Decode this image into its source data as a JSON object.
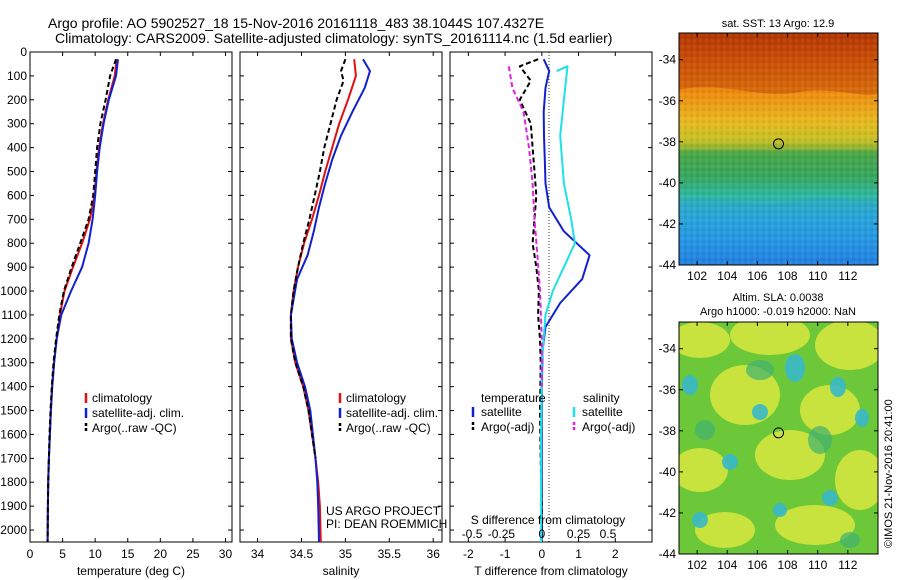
{
  "header": {
    "line1": "Argo profile: AO 5902527_18 15-Nov-2016 20161118_483 38.1044S 107.4327E",
    "line2": "Climatology: CARS2009. Satellite-adjusted climatology: synTS_20161114.nc (1.5d earlier)"
  },
  "credit": {
    "line1": "US ARGO PROJECT",
    "line2": "PI: DEAN ROEMMICH"
  },
  "watermark": "©IMOS 21-Nov-2016 20:41:00",
  "colors": {
    "climatology": "#e01010",
    "satellite": "#1020d0",
    "argo": "#000000",
    "sat_salinity": "#20e0e8",
    "argo_salinity": "#e020e0"
  },
  "chart_data": [
    {
      "type": "line",
      "name": "temperature-profile",
      "xlabel": "temperature (deg C)",
      "ylabel": "",
      "xlim": [
        0,
        31
      ],
      "ylim": [
        2050,
        0
      ],
      "xticks": [
        0,
        5,
        10,
        15,
        20,
        25,
        30
      ],
      "yticks": [
        0,
        100,
        200,
        300,
        400,
        500,
        600,
        700,
        800,
        900,
        1000,
        1100,
        1200,
        1300,
        1400,
        1500,
        1600,
        1700,
        1800,
        1900,
        2000
      ],
      "legend": [
        "climatology",
        "satellite-adj. clim.",
        "Argo(..raw -QC)"
      ],
      "series": [
        {
          "name": "climatology",
          "color": "#e01010",
          "dash": "",
          "points": [
            [
              13.3,
              30
            ],
            [
              13,
              100
            ],
            [
              12,
              200
            ],
            [
              11.2,
              300
            ],
            [
              10.6,
              400
            ],
            [
              10.2,
              500
            ],
            [
              9.9,
              600
            ],
            [
              9.2,
              700
            ],
            [
              8,
              800
            ],
            [
              6.6,
              900
            ],
            [
              5.3,
              1000
            ],
            [
              4.6,
              1100
            ],
            [
              4.1,
              1200
            ],
            [
              3.7,
              1300
            ],
            [
              3.4,
              1400
            ],
            [
              3.2,
              1500
            ],
            [
              3.05,
              1600
            ],
            [
              2.9,
              1700
            ],
            [
              2.8,
              1800
            ],
            [
              2.75,
              1900
            ],
            [
              2.7,
              2050
            ]
          ]
        },
        {
          "name": "satellite-adj. clim.",
          "color": "#1020d0",
          "dash": "",
          "points": [
            [
              13.5,
              30
            ],
            [
              13.2,
              100
            ],
            [
              12.1,
              200
            ],
            [
              11.3,
              300
            ],
            [
              10.7,
              400
            ],
            [
              10.3,
              500
            ],
            [
              10,
              600
            ],
            [
              9.6,
              700
            ],
            [
              9,
              800
            ],
            [
              8,
              900
            ],
            [
              6.3,
              1000
            ],
            [
              4.8,
              1100
            ],
            [
              4.1,
              1200
            ],
            [
              3.7,
              1300
            ],
            [
              3.4,
              1400
            ],
            [
              3.2,
              1500
            ],
            [
              3.05,
              1600
            ],
            [
              2.9,
              1700
            ],
            [
              2.8,
              1800
            ],
            [
              2.75,
              1900
            ],
            [
              2.7,
              2050
            ]
          ]
        },
        {
          "name": "Argo(..raw -QC)",
          "color": "#000000",
          "dash": "5,3",
          "points": [
            [
              13.2,
              30
            ],
            [
              12.3,
              100
            ],
            [
              11.6,
              200
            ],
            [
              10.8,
              300
            ],
            [
              10.3,
              400
            ],
            [
              10,
              500
            ],
            [
              9.7,
              600
            ],
            [
              9,
              700
            ],
            [
              7.7,
              800
            ],
            [
              6.4,
              900
            ],
            [
              5.2,
              1000
            ],
            [
              4.5,
              1100
            ],
            [
              4,
              1200
            ],
            [
              3.6,
              1300
            ],
            [
              3.35,
              1400
            ],
            [
              3.15,
              1500
            ],
            [
              3,
              1600
            ],
            [
              2.9,
              1700
            ],
            [
              2.8,
              1800
            ],
            [
              2.75,
              1900
            ],
            [
              2.7,
              2050
            ]
          ]
        }
      ]
    },
    {
      "type": "line",
      "name": "salinity-profile",
      "xlabel": "salinity",
      "ylabel": "",
      "xlim": [
        33.8,
        36.1
      ],
      "ylim": [
        2050,
        0
      ],
      "xticks": [
        34,
        34.5,
        35,
        35.5,
        36
      ],
      "legend": [
        "climatology",
        "satellite-adj. clim.",
        "Argo(..raw -QC)"
      ],
      "series": [
        {
          "name": "climatology",
          "color": "#e01010",
          "dash": "",
          "points": [
            [
              35.1,
              30
            ],
            [
              35.12,
              100
            ],
            [
              35.03,
              200
            ],
            [
              34.93,
              300
            ],
            [
              34.85,
              400
            ],
            [
              34.77,
              500
            ],
            [
              34.7,
              600
            ],
            [
              34.62,
              700
            ],
            [
              34.53,
              800
            ],
            [
              34.46,
              900
            ],
            [
              34.41,
              1000
            ],
            [
              34.38,
              1100
            ],
            [
              34.38,
              1200
            ],
            [
              34.43,
              1300
            ],
            [
              34.52,
              1400
            ],
            [
              34.58,
              1500
            ],
            [
              34.62,
              1600
            ],
            [
              34.66,
              1700
            ],
            [
              34.69,
              1800
            ],
            [
              34.71,
              1900
            ],
            [
              34.72,
              2050
            ]
          ]
        },
        {
          "name": "satellite-adj. clim.",
          "color": "#1020d0",
          "dash": "",
          "points": [
            [
              35.2,
              30
            ],
            [
              35.28,
              80
            ],
            [
              35.22,
              150
            ],
            [
              35.08,
              250
            ],
            [
              34.95,
              350
            ],
            [
              34.85,
              450
            ],
            [
              34.77,
              550
            ],
            [
              34.7,
              650
            ],
            [
              34.64,
              750
            ],
            [
              34.57,
              850
            ],
            [
              34.45,
              950
            ],
            [
              34.38,
              1100
            ],
            [
              34.39,
              1200
            ],
            [
              34.45,
              1300
            ],
            [
              34.54,
              1400
            ],
            [
              34.6,
              1500
            ],
            [
              34.63,
              1600
            ],
            [
              34.66,
              1700
            ],
            [
              34.68,
              1800
            ],
            [
              34.69,
              1900
            ],
            [
              34.7,
              2050
            ]
          ]
        },
        {
          "name": "Argo(..raw -QC)",
          "color": "#000000",
          "dash": "5,3",
          "points": [
            [
              35,
              30
            ],
            [
              34.95,
              80
            ],
            [
              34.98,
              120
            ],
            [
              34.9,
              200
            ],
            [
              34.83,
              300
            ],
            [
              34.76,
              400
            ],
            [
              34.71,
              500
            ],
            [
              34.65,
              600
            ],
            [
              34.59,
              700
            ],
            [
              34.52,
              800
            ],
            [
              34.46,
              900
            ],
            [
              34.41,
              1000
            ],
            [
              34.38,
              1100
            ],
            [
              34.38,
              1200
            ],
            [
              34.43,
              1300
            ],
            [
              34.52,
              1400
            ],
            [
              34.58,
              1500
            ],
            [
              34.62,
              1600
            ],
            [
              34.66,
              1700
            ]
          ]
        }
      ]
    },
    {
      "type": "line",
      "name": "difference-profile",
      "xlabel": "T difference from climatology",
      "ylabel": "",
      "x2label": "S difference from climatology",
      "xlim": [
        -2.5,
        3
      ],
      "ylim": [
        2050,
        0
      ],
      "xticks": [
        -2,
        -1,
        0,
        1,
        2
      ],
      "x2ticks": [
        "-0.5",
        "-0.25",
        "0",
        "0.25",
        "0.5"
      ],
      "x2tick_positions_T": [
        -1.9,
        -1.1,
        0,
        1.0,
        1.8
      ],
      "legend_groups": [
        "temperature",
        "salinity"
      ],
      "legend": [
        "satellite",
        "Argo(-adj)",
        "satellite",
        "Argo(-adj)"
      ],
      "series": [
        {
          "name": "satellite",
          "group": "temperature",
          "color": "#1020d0",
          "dash": "",
          "points": [
            [
              0.05,
              30
            ],
            [
              0.2,
              80
            ],
            [
              0.1,
              150
            ],
            [
              0.05,
              250
            ],
            [
              0.06,
              350
            ],
            [
              0.08,
              450
            ],
            [
              0.1,
              550
            ],
            [
              0.2,
              650
            ],
            [
              0.6,
              750
            ],
            [
              1.3,
              850
            ],
            [
              1.1,
              950
            ],
            [
              0.5,
              1050
            ],
            [
              0.1,
              1150
            ],
            [
              0.02,
              1250
            ],
            [
              0,
              1400
            ],
            [
              0,
              1600
            ],
            [
              0,
              2050
            ]
          ]
        },
        {
          "name": "Argo(-adj)",
          "group": "temperature",
          "color": "#000000",
          "dash": "5,3",
          "points": [
            [
              -0.1,
              30
            ],
            [
              -0.6,
              60
            ],
            [
              -0.3,
              120
            ],
            [
              -0.6,
              200
            ],
            [
              -0.3,
              300
            ],
            [
              -0.25,
              400
            ],
            [
              -0.2,
              500
            ],
            [
              -0.15,
              600
            ],
            [
              -0.2,
              700
            ],
            [
              -0.25,
              800
            ],
            [
              -0.15,
              900
            ],
            [
              -0.08,
              1000
            ],
            [
              -0.1,
              1100
            ],
            [
              -0.05,
              1200
            ],
            [
              -0.03,
              1300
            ],
            [
              -0.05,
              1500
            ],
            [
              -0.03,
              1700
            ],
            [
              0,
              1900
            ],
            [
              0,
              2050
            ]
          ]
        },
        {
          "name": "satellite",
          "group": "salinity",
          "color": "#20e0e8",
          "dash": "",
          "points": [
            [
              0.4,
              80
            ],
            [
              0.7,
              60
            ],
            [
              0.6,
              200
            ],
            [
              0.5,
              350
            ],
            [
              0.6,
              550
            ],
            [
              0.8,
              700
            ],
            [
              0.9,
              800
            ],
            [
              0.6,
              900
            ],
            [
              0.3,
              1000
            ],
            [
              0.1,
              1100
            ],
            [
              0,
              1300
            ],
            [
              -0.02,
              1600
            ],
            [
              -0.02,
              2050
            ]
          ]
        },
        {
          "name": "Argo(-adj)",
          "group": "salinity",
          "color": "#e020e0",
          "dash": "5,3",
          "points": [
            [
              -0.9,
              60
            ],
            [
              -0.8,
              150
            ],
            [
              -0.5,
              250
            ],
            [
              -0.35,
              400
            ],
            [
              -0.25,
              550
            ],
            [
              -0.2,
              700
            ],
            [
              -0.12,
              850
            ],
            [
              -0.05,
              1000
            ],
            [
              0,
              1200
            ],
            [
              0,
              1400
            ]
          ]
        }
      ]
    },
    {
      "type": "heatmap",
      "name": "sst-map",
      "title": "sat. SST: 13 Argo: 12.9",
      "xlim": [
        100.8,
        114
      ],
      "ylim": [
        -44,
        -32.7
      ],
      "xticks": [
        102,
        104,
        106,
        108,
        110,
        112
      ],
      "yticks": [
        -34,
        -36,
        -38,
        -40,
        -42,
        -44
      ],
      "marker": {
        "lon": 107.4,
        "lat": -38.1
      }
    },
    {
      "type": "heatmap",
      "name": "sla-map",
      "title": "Altim. SLA: 0.0038",
      "subtitle": "Argo h1000: -0.019 h2000: NaN",
      "xlim": [
        100.8,
        114
      ],
      "ylim": [
        -44,
        -32.7
      ],
      "xticks": [
        102,
        104,
        106,
        108,
        110,
        112
      ],
      "yticks": [
        -34,
        -36,
        -38,
        -40,
        -42,
        -44
      ],
      "marker": {
        "lon": 107.4,
        "lat": -38.1
      }
    }
  ]
}
